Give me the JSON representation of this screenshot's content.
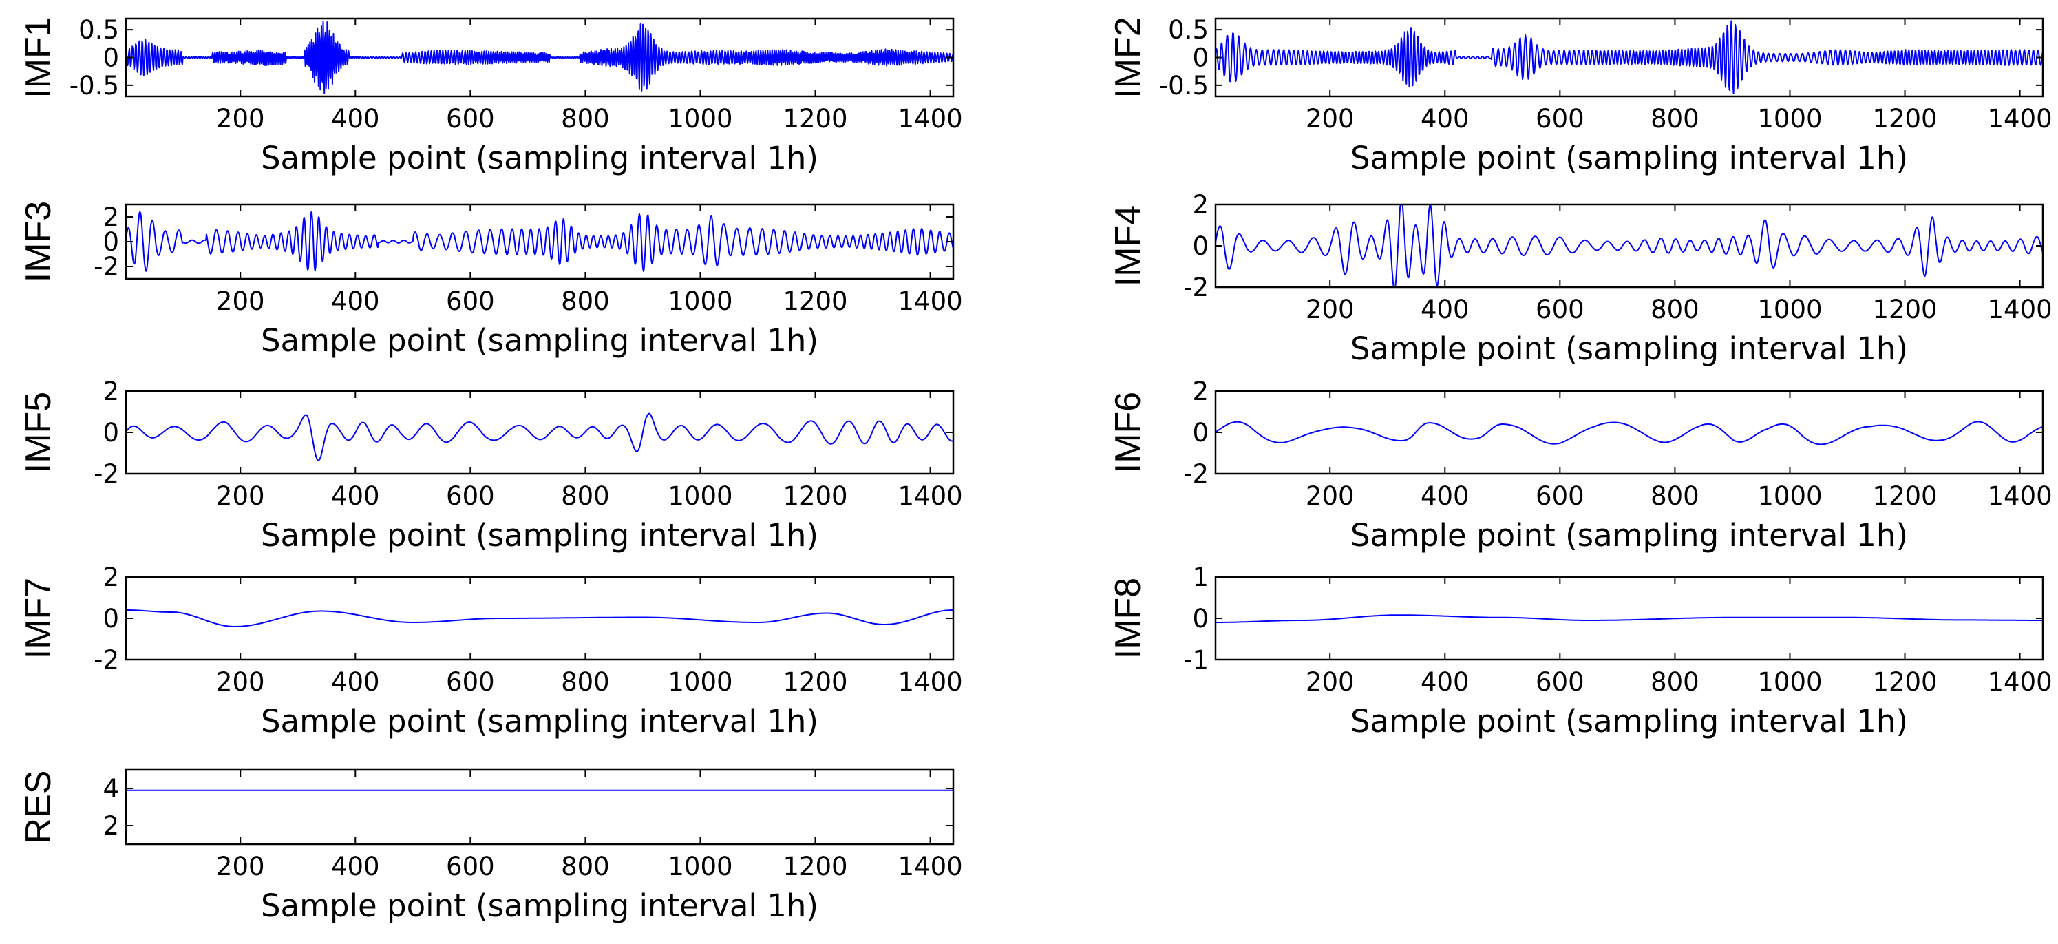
{
  "figure": {
    "line_color": "#0000ff",
    "axis_color": "#000000"
  },
  "chart_data": [
    {
      "name": "IMF1",
      "type": "line",
      "ylabel": "IMF1",
      "xlabel": "Sample point (sampling interval 1h)",
      "xlim": [
        1,
        1440
      ],
      "ylim": [
        -0.7,
        0.7
      ],
      "yticks": [
        0.5,
        0,
        -0.5
      ],
      "ytick_labels": [
        "0.5",
        "0",
        "-0.5"
      ],
      "xticks": [
        200,
        400,
        600,
        800,
        1000,
        1200,
        1400
      ],
      "xtick_labels": [
        "200",
        "400",
        "600",
        "800",
        "1000",
        "1200",
        "1400"
      ],
      "samples": 1440,
      "signal": "oscillatory",
      "cycles": 420,
      "envelope_base": 0.12,
      "bursts": [
        {
          "x": 345,
          "amp": 0.55
        },
        {
          "x": 900,
          "amp": 0.5
        },
        {
          "x": 30,
          "amp": 0.2
        }
      ],
      "quiet_segments": [
        [
          100,
          150
        ],
        [
          280,
          310
        ],
        [
          390,
          480
        ],
        [
          740,
          790
        ]
      ]
    },
    {
      "name": "IMF2",
      "type": "line",
      "ylabel": "IMF2",
      "xlabel": "Sample point (sampling interval 1h)",
      "xlim": [
        1,
        1440
      ],
      "ylim": [
        -0.7,
        0.7
      ],
      "yticks": [
        0.5,
        0,
        -0.5
      ],
      "ytick_labels": [
        "0.5",
        "0",
        "-0.5"
      ],
      "xticks": [
        200,
        400,
        600,
        800,
        1000,
        1200,
        1400
      ],
      "xtick_labels": [
        "200",
        "400",
        "600",
        "800",
        "1000",
        "1200",
        "1400"
      ],
      "samples": 1440,
      "signal": "oscillatory",
      "cycles": 230,
      "envelope_base": 0.12,
      "bursts": [
        {
          "x": 340,
          "amp": 0.45
        },
        {
          "x": 900,
          "amp": 0.5
        },
        {
          "x": 30,
          "amp": 0.35
        },
        {
          "x": 540,
          "amp": 0.3
        }
      ],
      "quiet_segments": [
        [
          420,
          480
        ]
      ]
    },
    {
      "name": "IMF3",
      "type": "line",
      "ylabel": "IMF3",
      "xlabel": "Sample point (sampling interval 1h)",
      "xlim": [
        1,
        1440
      ],
      "ylim": [
        -3,
        3
      ],
      "yticks": [
        2,
        0,
        -2
      ],
      "ytick_labels": [
        "2",
        "0",
        "-2"
      ],
      "xticks": [
        200,
        400,
        600,
        800,
        1000,
        1200,
        1400
      ],
      "xtick_labels": [
        "200",
        "400",
        "600",
        "800",
        "1000",
        "1200",
        "1400"
      ],
      "samples": 1440,
      "signal": "oscillatory",
      "cycles": 100,
      "envelope_base": 0.8,
      "bursts": [
        {
          "x": 30,
          "amp": 1.8
        },
        {
          "x": 325,
          "amp": 1.6
        },
        {
          "x": 900,
          "amp": 1.7
        },
        {
          "x": 760,
          "amp": 1.2
        },
        {
          "x": 1020,
          "amp": 1.3
        }
      ],
      "quiet_segments": [
        [
          100,
          140
        ],
        [
          440,
          500
        ]
      ]
    },
    {
      "name": "IMF4",
      "type": "line",
      "ylabel": "IMF4",
      "xlabel": "Sample point (sampling interval 1h)",
      "xlim": [
        1,
        1440
      ],
      "ylim": [
        -2,
        2
      ],
      "yticks": [
        2,
        0,
        -2
      ],
      "ytick_labels": [
        "2",
        "0",
        "-2"
      ],
      "xticks": [
        200,
        400,
        600,
        800,
        1000,
        1200,
        1400
      ],
      "xtick_labels": [
        "200",
        "400",
        "600",
        "800",
        "1000",
        "1200",
        "1400"
      ],
      "samples": 1440,
      "signal": "oscillatory",
      "cycles": 52,
      "envelope_base": 0.35,
      "bursts": [
        {
          "x": 320,
          "amp": 1.9
        },
        {
          "x": 380,
          "amp": 1.7
        },
        {
          "x": 230,
          "amp": 1.0
        },
        {
          "x": 1240,
          "amp": 1.2
        },
        {
          "x": 20,
          "amp": 0.9
        },
        {
          "x": 960,
          "amp": 0.9
        }
      ],
      "quiet_segments": []
    },
    {
      "name": "IMF5",
      "type": "line",
      "ylabel": "IMF5",
      "xlabel": "Sample point (sampling interval 1h)",
      "xlim": [
        1,
        1440
      ],
      "ylim": [
        -2,
        2
      ],
      "yticks": [
        2,
        0,
        -2
      ],
      "ytick_labels": [
        "2",
        "0",
        "-2"
      ],
      "xticks": [
        200,
        400,
        600,
        800,
        1000,
        1200,
        1400
      ],
      "xtick_labels": [
        "200",
        "400",
        "600",
        "800",
        "1000",
        "1200",
        "1400"
      ],
      "samples": 1440,
      "signal": "oscillatory",
      "cycles": 26,
      "envelope_base": 0.4,
      "bursts": [
        {
          "x": 330,
          "amp": 1.2
        },
        {
          "x": 900,
          "amp": 0.8
        }
      ],
      "quiet_segments": []
    },
    {
      "name": "IMF6",
      "type": "line",
      "ylabel": "IMF6",
      "xlabel": "Sample point (sampling interval 1h)",
      "xlim": [
        1,
        1440
      ],
      "ylim": [
        -2,
        2
      ],
      "yticks": [
        2,
        0,
        -2
      ],
      "ytick_labels": [
        "2",
        "0",
        "-2"
      ],
      "xticks": [
        200,
        400,
        600,
        800,
        1000,
        1200,
        1400
      ],
      "xtick_labels": [
        "200",
        "400",
        "600",
        "800",
        "1000",
        "1200",
        "1400"
      ],
      "samples": 1440,
      "signal": "oscillatory",
      "cycles": 10.5,
      "envelope_base": 0.45,
      "bursts": [
        {
          "x": 350,
          "amp": 0.25
        },
        {
          "x": 480,
          "amp": 0.25
        }
      ],
      "quiet_segments": []
    },
    {
      "name": "IMF7",
      "type": "line",
      "ylabel": "IMF7",
      "xlabel": "Sample point (sampling interval 1h)",
      "xlim": [
        1,
        1440
      ],
      "ylim": [
        -2,
        2
      ],
      "yticks": [
        2,
        0,
        -2
      ],
      "ytick_labels": [
        "2",
        "0",
        "-2"
      ],
      "xticks": [
        200,
        400,
        600,
        800,
        1000,
        1200,
        1400
      ],
      "xtick_labels": [
        "200",
        "400",
        "600",
        "800",
        "1000",
        "1200",
        "1400"
      ],
      "samples": 1440,
      "signal": "smooth",
      "points": [
        [
          1,
          0.4
        ],
        [
          80,
          0.3
        ],
        [
          190,
          -0.4
        ],
        [
          340,
          0.35
        ],
        [
          500,
          -0.2
        ],
        [
          650,
          0.0
        ],
        [
          900,
          0.05
        ],
        [
          1100,
          -0.2
        ],
        [
          1220,
          0.25
        ],
        [
          1320,
          -0.3
        ],
        [
          1440,
          0.4
        ]
      ]
    },
    {
      "name": "IMF8",
      "type": "line",
      "ylabel": "IMF8",
      "xlabel": "Sample point (sampling interval 1h)",
      "xlim": [
        1,
        1440
      ],
      "ylim": [
        -1,
        1
      ],
      "yticks": [
        1,
        0,
        -1
      ],
      "ytick_labels": [
        "1",
        "0",
        "-1"
      ],
      "xticks": [
        200,
        400,
        600,
        800,
        1000,
        1200,
        1400
      ],
      "xtick_labels": [
        "200",
        "400",
        "600",
        "800",
        "1000",
        "1200",
        "1400"
      ],
      "samples": 1440,
      "signal": "smooth",
      "points": [
        [
          1,
          -0.1
        ],
        [
          150,
          -0.05
        ],
        [
          320,
          0.08
        ],
        [
          500,
          0.02
        ],
        [
          650,
          -0.05
        ],
        [
          900,
          0.02
        ],
        [
          1100,
          0.02
        ],
        [
          1300,
          -0.04
        ],
        [
          1440,
          -0.05
        ]
      ]
    },
    {
      "name": "RES",
      "type": "line",
      "ylabel": "RES",
      "xlabel": "Sample point (sampling interval 1h)",
      "xlim": [
        1,
        1440
      ],
      "ylim": [
        1,
        5
      ],
      "yticks": [
        4,
        2
      ],
      "ytick_labels": [
        "4",
        "2"
      ],
      "xticks": [
        200,
        400,
        600,
        800,
        1000,
        1200,
        1400
      ],
      "xtick_labels": [
        "200",
        "400",
        "600",
        "800",
        "1000",
        "1200",
        "1400"
      ],
      "samples": 1440,
      "signal": "smooth",
      "points": [
        [
          1,
          3.9
        ],
        [
          1440,
          3.9
        ]
      ]
    }
  ]
}
